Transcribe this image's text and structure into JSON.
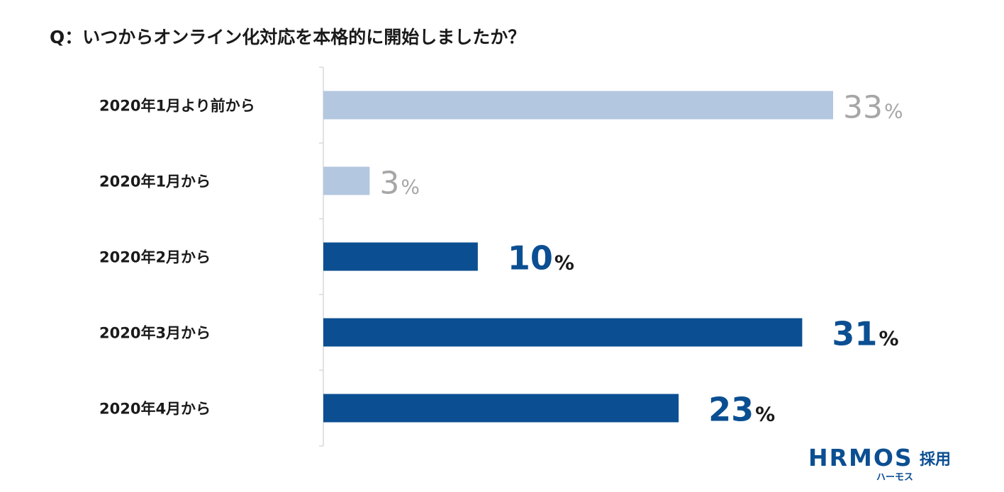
{
  "chart_data": {
    "type": "bar",
    "orientation": "horizontal",
    "title": "Q：いつからオンライン化対応を本格的に開始しましたか？",
    "categories": [
      "2020年1月より前から",
      "2020年1月から",
      "2020年2月から",
      "2020年3月から",
      "2020年4月から"
    ],
    "values": [
      33,
      3,
      10,
      31,
      23
    ],
    "unit": "%",
    "value_labels": [
      "33",
      "3",
      "10",
      "31",
      "23"
    ],
    "bar_colors": [
      "#b4c7e0",
      "#b4c7e0",
      "#0b4f92",
      "#0b4f92",
      "#0b4f92"
    ],
    "label_styles": [
      "light",
      "light",
      "dark",
      "dark",
      "dark"
    ],
    "xlim": [
      0,
      36.5
    ],
    "grid": false,
    "legend": "none"
  },
  "branding": {
    "logo_text": "HRMOS",
    "logo_suffix": "採用",
    "logo_kana": "ハーモス"
  },
  "colors": {
    "accent": "#0b4f92",
    "light_bar": "#b4c7e0",
    "axis": "#d0d0d0",
    "light_text": "#a6a6a6"
  }
}
